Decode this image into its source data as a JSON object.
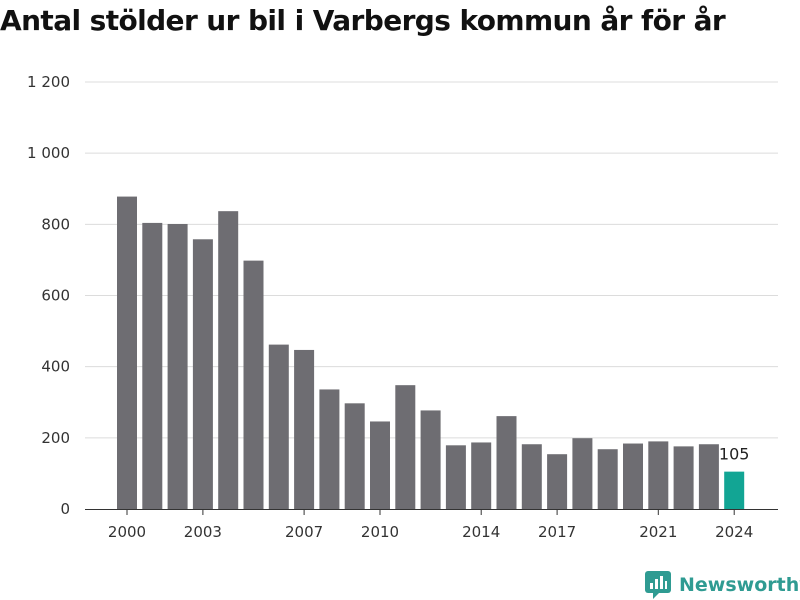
{
  "chart_data": {
    "type": "bar",
    "title": "Antal stölder ur bil i Varbergs kommun år för år",
    "xlabel": "",
    "ylabel": "",
    "ylim": [
      0,
      1200
    ],
    "yticks": [
      "0",
      "200",
      "400",
      "600",
      "800",
      "1 000",
      "1 200"
    ],
    "xticks": [
      "2000",
      "2003",
      "2007",
      "2010",
      "2014",
      "2017",
      "2021",
      "2024"
    ],
    "categories": [
      "2000",
      "2001",
      "2002",
      "2003",
      "2004",
      "2005",
      "2006",
      "2007",
      "2008",
      "2009",
      "2010",
      "2011",
      "2012",
      "2013",
      "2014",
      "2015",
      "2016",
      "2017",
      "2018",
      "2019",
      "2020",
      "2021",
      "2022",
      "2023",
      "2024"
    ],
    "values": [
      878,
      804,
      801,
      758,
      837,
      698,
      462,
      447,
      336,
      297,
      246,
      348,
      277,
      179,
      187,
      261,
      182,
      154,
      199,
      168,
      184,
      190,
      176,
      182,
      105
    ],
    "grid": true,
    "bar_color": "#6e6d72",
    "highlight_color": "#12a594",
    "highlight_label": "105"
  },
  "brand": {
    "name": "Newsworthy",
    "icon": "newsworthy-logo-icon",
    "color": "#2f9b92"
  }
}
